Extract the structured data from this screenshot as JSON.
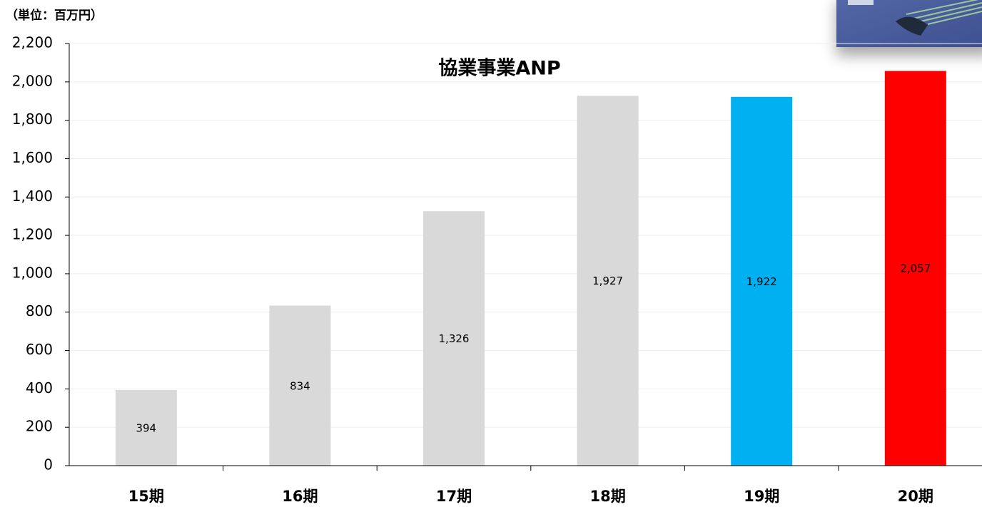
{
  "chart_data": {
    "type": "bar",
    "title": "協業事業ANP",
    "unit_label": "（単位：百万円）",
    "categories": [
      "15期",
      "16期",
      "17期",
      "18期",
      "19期",
      "20期"
    ],
    "values": [
      394,
      834,
      1326,
      1927,
      1922,
      2057
    ],
    "value_labels": [
      "394",
      "834",
      "1,326",
      "1,927",
      "1,922",
      "2,057"
    ],
    "colors": [
      "#d9d9d9",
      "#d9d9d9",
      "#d9d9d9",
      "#d9d9d9",
      "#00b0f0",
      "#ff0000"
    ],
    "ylim": [
      0,
      2200
    ],
    "yticks": [
      0,
      200,
      400,
      600,
      800,
      {
        "value": 1000,
        "label": "1,000"
      },
      {
        "value": 1200,
        "label": "1,200"
      },
      {
        "value": 1400,
        "label": "1,400"
      },
      {
        "value": 1600,
        "label": "1,600"
      },
      {
        "value": 1800,
        "label": "1,800"
      },
      {
        "value": 2000,
        "label": "2,000"
      },
      {
        "value": 2200,
        "label": "2,200"
      }
    ],
    "grid": true
  }
}
